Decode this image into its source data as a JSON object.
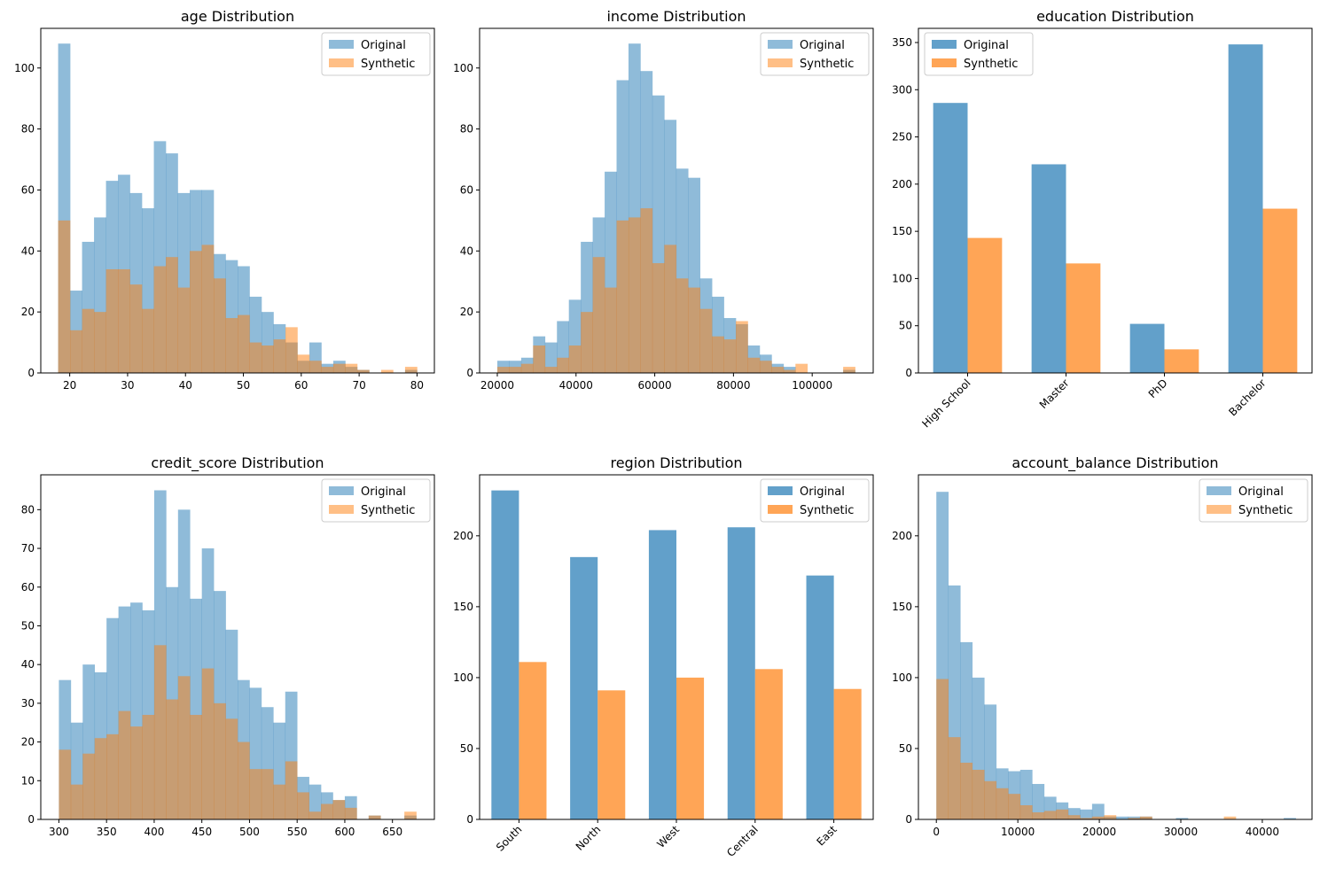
{
  "chart_data": [
    {
      "type": "histogram",
      "title": "age Distribution",
      "bin_start": 18,
      "bin_width": 2.0667,
      "xlim": [
        15,
        83
      ],
      "ylim": [
        0,
        113
      ],
      "xticks": [
        "20",
        "30",
        "40",
        "50",
        "60",
        "70",
        "80"
      ],
      "xtick_values": [
        20,
        30,
        40,
        50,
        60,
        70,
        80
      ],
      "yticks": [
        "0",
        "20",
        "40",
        "60",
        "80",
        "100"
      ],
      "ytick_values": [
        0,
        20,
        40,
        60,
        80,
        100
      ],
      "legend": {
        "position": "top-right"
      },
      "series": [
        {
          "name": "Original",
          "color": "#1f77b4",
          "alpha": 0.5,
          "values": [
            108,
            27,
            43,
            51,
            63,
            65,
            59,
            54,
            76,
            72,
            59,
            60,
            60,
            39,
            37,
            35,
            25,
            20,
            16,
            10,
            4,
            10,
            3,
            4,
            2,
            1,
            0,
            0,
            0,
            1
          ]
        },
        {
          "name": "Synthetic",
          "color": "#ff7f0e",
          "alpha": 0.5,
          "values": [
            50,
            14,
            21,
            20,
            34,
            34,
            29,
            21,
            35,
            38,
            28,
            40,
            42,
            31,
            18,
            19,
            10,
            9,
            11,
            15,
            6,
            4,
            2,
            3,
            3,
            1,
            0,
            1,
            0,
            2
          ]
        }
      ]
    },
    {
      "type": "histogram",
      "title": "income Distribution",
      "bin_start": 20000,
      "bin_width": 3030,
      "xlim": [
        15500,
        115500
      ],
      "ylim": [
        0,
        113
      ],
      "xticks": [
        "20000",
        "40000",
        "60000",
        "80000",
        "100000"
      ],
      "xtick_values": [
        20000,
        40000,
        60000,
        80000,
        100000
      ],
      "yticks": [
        "0",
        "20",
        "40",
        "60",
        "80",
        "100"
      ],
      "ytick_values": [
        0,
        20,
        40,
        60,
        80,
        100
      ],
      "legend": {
        "position": "top-right"
      },
      "series": [
        {
          "name": "Original",
          "color": "#1f77b4",
          "alpha": 0.5,
          "values": [
            4,
            4,
            5,
            12,
            10,
            17,
            24,
            43,
            51,
            66,
            96,
            108,
            99,
            91,
            83,
            67,
            64,
            31,
            25,
            18,
            16,
            9,
            6,
            3,
            2,
            0,
            0,
            0,
            0,
            1
          ]
        },
        {
          "name": "Synthetic",
          "color": "#ff7f0e",
          "alpha": 0.5,
          "values": [
            2,
            2,
            3,
            9,
            2,
            5,
            9,
            20,
            38,
            28,
            50,
            51,
            54,
            36,
            42,
            31,
            28,
            21,
            12,
            11,
            17,
            5,
            4,
            2,
            1,
            3,
            0,
            0,
            0,
            2
          ]
        }
      ]
    },
    {
      "type": "bar",
      "title": "education Distribution",
      "categories": [
        "High School",
        "Master",
        "PhD",
        "Bachelor"
      ],
      "ylim": [
        0,
        365
      ],
      "yticks": [
        "0",
        "50",
        "100",
        "150",
        "200",
        "250",
        "300",
        "350"
      ],
      "ytick_values": [
        0,
        50,
        100,
        150,
        200,
        250,
        300,
        350
      ],
      "xtick_rotation": 45,
      "legend": {
        "position": "top-left"
      },
      "series": [
        {
          "name": "Original",
          "color": "#1f77b4",
          "alpha": 0.7,
          "values": [
            286,
            221,
            52,
            348
          ]
        },
        {
          "name": "Synthetic",
          "color": "#ff7f0e",
          "alpha": 0.7,
          "values": [
            143,
            116,
            25,
            174
          ]
        }
      ]
    },
    {
      "type": "histogram",
      "title": "credit_score Distribution",
      "bin_start": 300,
      "bin_width": 12.5,
      "xlim": [
        281,
        694
      ],
      "ylim": [
        0,
        89
      ],
      "xticks": [
        "300",
        "350",
        "400",
        "450",
        "500",
        "550",
        "600",
        "650"
      ],
      "xtick_values": [
        300,
        350,
        400,
        450,
        500,
        550,
        600,
        650
      ],
      "yticks": [
        "0",
        "10",
        "20",
        "30",
        "40",
        "50",
        "60",
        "70",
        "80"
      ],
      "ytick_values": [
        0,
        10,
        20,
        30,
        40,
        50,
        60,
        70,
        80
      ],
      "legend": {
        "position": "top-right"
      },
      "series": [
        {
          "name": "Original",
          "color": "#1f77b4",
          "alpha": 0.5,
          "values": [
            36,
            25,
            40,
            38,
            52,
            55,
            56,
            54,
            85,
            60,
            80,
            57,
            70,
            59,
            49,
            36,
            34,
            29,
            25,
            33,
            11,
            9,
            7,
            5,
            6,
            0,
            1,
            0,
            0,
            1
          ]
        },
        {
          "name": "Synthetic",
          "color": "#ff7f0e",
          "alpha": 0.5,
          "values": [
            18,
            9,
            17,
            21,
            22,
            28,
            24,
            27,
            45,
            31,
            37,
            27,
            39,
            30,
            26,
            20,
            13,
            13,
            9,
            15,
            7,
            2,
            4,
            5,
            3,
            0,
            1,
            0,
            0,
            2
          ]
        }
      ]
    },
    {
      "type": "bar",
      "title": "region Distribution",
      "categories": [
        "South",
        "North",
        "West",
        "Central",
        "East"
      ],
      "ylim": [
        0,
        243
      ],
      "yticks": [
        "0",
        "50",
        "100",
        "150",
        "200"
      ],
      "ytick_values": [
        0,
        50,
        100,
        150,
        200
      ],
      "xtick_rotation": 45,
      "legend": {
        "position": "top-right"
      },
      "series": [
        {
          "name": "Original",
          "color": "#1f77b4",
          "alpha": 0.7,
          "values": [
            232,
            185,
            204,
            206,
            172
          ]
        },
        {
          "name": "Synthetic",
          "color": "#ff7f0e",
          "alpha": 0.7,
          "values": [
            111,
            91,
            100,
            106,
            92
          ]
        }
      ]
    },
    {
      "type": "histogram",
      "title": "account_balance Distribution",
      "bin_start": 0,
      "bin_width": 1470,
      "xlim": [
        -2200,
        46100
      ],
      "ylim": [
        0,
        243
      ],
      "xticks": [
        "0",
        "10000",
        "20000",
        "30000",
        "40000"
      ],
      "xtick_values": [
        0,
        10000,
        20000,
        30000,
        40000
      ],
      "yticks": [
        "0",
        "50",
        "100",
        "150",
        "200"
      ],
      "ytick_values": [
        0,
        50,
        100,
        150,
        200
      ],
      "legend": {
        "position": "top-right"
      },
      "series": [
        {
          "name": "Original",
          "color": "#1f77b4",
          "alpha": 0.5,
          "values": [
            231,
            165,
            125,
            100,
            81,
            36,
            34,
            35,
            25,
            16,
            12,
            8,
            7,
            11,
            2,
            2,
            2,
            2,
            0,
            0,
            1,
            0,
            0,
            0,
            0,
            0,
            0,
            0,
            0,
            1
          ]
        },
        {
          "name": "Synthetic",
          "color": "#ff7f0e",
          "alpha": 0.5,
          "values": [
            99,
            58,
            40,
            35,
            27,
            22,
            18,
            10,
            5,
            6,
            7,
            3,
            1,
            2,
            3,
            0,
            1,
            2,
            0,
            0,
            0,
            0,
            0,
            0,
            2,
            0,
            0,
            0,
            0,
            0
          ]
        }
      ]
    }
  ]
}
